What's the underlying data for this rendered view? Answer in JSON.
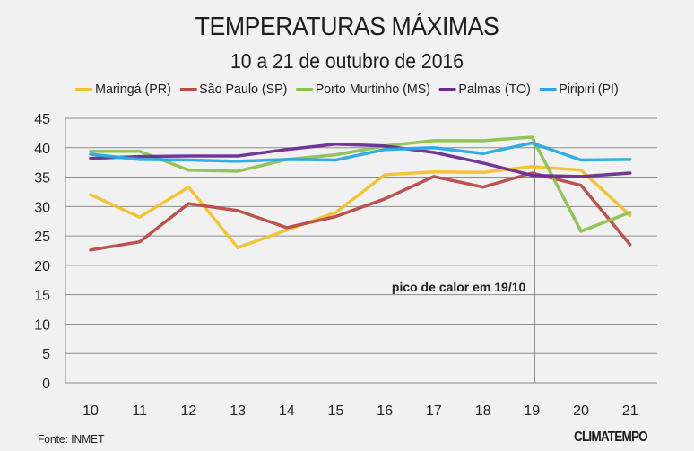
{
  "chart_data": {
    "type": "line",
    "title": "TEMPERATURAS MÁXIMAS",
    "subtitle": "10 a 21 de outubro de 2016",
    "xlabel": "",
    "ylabel": "",
    "x": [
      "10",
      "11",
      "12",
      "13",
      "14",
      "15",
      "16",
      "17",
      "18",
      "19",
      "20",
      "21"
    ],
    "ylim": [
      0,
      45
    ],
    "yticks": [
      "0",
      "5",
      "10",
      "15",
      "20",
      "25",
      "30",
      "35",
      "40",
      "45"
    ],
    "grid": true,
    "legend_position": "top",
    "series": [
      {
        "name": "Maringá (PR)",
        "color": "#f2c12e",
        "values": [
          32,
          28.2,
          33.3,
          23,
          26,
          29,
          35.4,
          35.9,
          35.8,
          36.8,
          36.2,
          28.5
        ]
      },
      {
        "name": "São Paulo (SP)",
        "color": "#b84a47",
        "values": [
          22.6,
          24,
          30.5,
          29.3,
          26.4,
          28.3,
          31.3,
          35.1,
          33.3,
          35.7,
          33.6,
          23.5
        ]
      },
      {
        "name": "Porto Murtinho (MS)",
        "color": "#8cc152",
        "values": [
          39.4,
          39.4,
          36.2,
          36,
          38,
          38.8,
          40.3,
          41.2,
          41.2,
          41.8,
          25.8,
          29
        ]
      },
      {
        "name": "Palmas (TO)",
        "color": "#6a2c91",
        "values": [
          38.2,
          38.5,
          38.6,
          38.6,
          39.7,
          40.6,
          40.3,
          39.2,
          37.4,
          35.3,
          35.1,
          35.7
        ]
      },
      {
        "name": "Piripiri (PI)",
        "color": "#27aae1",
        "values": [
          38.9,
          38,
          37.9,
          37.7,
          38,
          37.9,
          39.7,
          40,
          39,
          40.8,
          37.9,
          38
        ]
      }
    ],
    "annotations": [
      {
        "text": "pico de calor em 19/10",
        "x": "19",
        "type": "vertical-line"
      }
    ]
  },
  "footer": {
    "source": "Fonte: INMET",
    "logo": "CLIMATEMPO"
  }
}
